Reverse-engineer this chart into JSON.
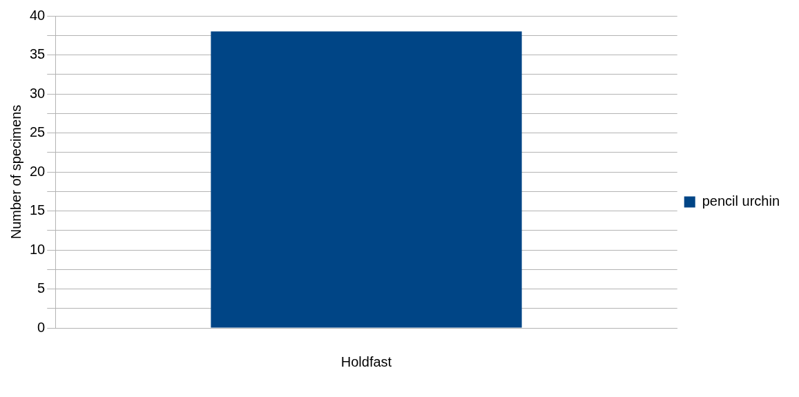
{
  "chart_data": {
    "type": "bar",
    "ylabel": "Number of specimens",
    "categories": [
      "Holdfast"
    ],
    "series": [
      {
        "name": "pencil urchin",
        "color": "#004586",
        "values": [
          38
        ]
      }
    ],
    "ylim": [
      0,
      40
    ],
    "yticks": [
      0,
      {
        "value": 2.5,
        "label": null
      },
      5,
      {
        "value": 7.5,
        "label": null
      },
      10,
      {
        "value": 12.5,
        "label": null
      },
      15,
      {
        "value": 17.5,
        "label": null
      },
      20,
      {
        "value": 22.5,
        "label": null
      },
      25,
      {
        "value": 27.5,
        "label": null
      },
      30,
      {
        "value": 32.5,
        "label": null
      },
      35,
      {
        "value": 37.5,
        "label": null
      },
      40
    ],
    "grid": true,
    "legend": "right"
  }
}
